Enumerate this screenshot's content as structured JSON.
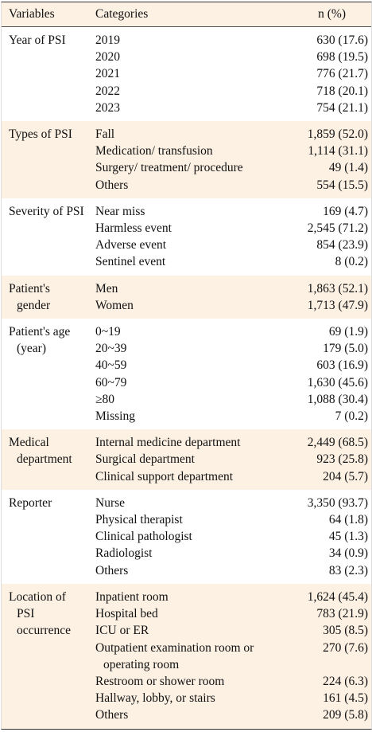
{
  "table": {
    "header": [
      "Variables",
      "Categories",
      "n (%)"
    ],
    "groups": [
      {
        "variable": "Year of PSI",
        "rows": [
          [
            "2019",
            "630 (17.6)"
          ],
          [
            "2020",
            "698 (19.5)"
          ],
          [
            "2021",
            "776 (21.7)"
          ],
          [
            "2022",
            "718 (20.1)"
          ],
          [
            "2023",
            "754 (21.1)"
          ]
        ]
      },
      {
        "variable": "Types of PSI",
        "rows": [
          [
            "Fall",
            "1,859 (52.0)"
          ],
          [
            "Medication/ transfusion",
            "1,114 (31.1)"
          ],
          [
            "Surgery/ treatment/ procedure",
            "49 (1.4)"
          ],
          [
            "Others",
            "554 (15.5)"
          ]
        ]
      },
      {
        "variable": "Severity of PSI",
        "rows": [
          [
            "Near miss",
            "169 (4.7)"
          ],
          [
            "Harmless event",
            "2,545 (71.2)"
          ],
          [
            "Adverse event",
            "854 (23.9)"
          ],
          [
            "Sentinel event",
            "8 (0.2)"
          ]
        ]
      },
      {
        "variable": "Patient's gender",
        "rows": [
          [
            "Men",
            "1,863 (52.1)"
          ],
          [
            "Women",
            "1,713 (47.9)"
          ]
        ]
      },
      {
        "variable": "Patient's age (year)",
        "rows": [
          [
            "0~19",
            "69 (1.9)"
          ],
          [
            "20~39",
            "179 (5.0)"
          ],
          [
            "40~59",
            "603 (16.9)"
          ],
          [
            "60~79",
            "1,630 (45.6)"
          ],
          [
            "≥80",
            "1,088 (30.4)"
          ],
          [
            "Missing",
            "7 (0.2)"
          ]
        ]
      },
      {
        "variable": "Medical department",
        "rows": [
          [
            "Internal medicine department",
            "2,449 (68.5)"
          ],
          [
            "Surgical department",
            "923 (25.8)"
          ],
          [
            "Clinical support department",
            "204 (5.7)"
          ]
        ]
      },
      {
        "variable": "Reporter",
        "rows": [
          [
            "Nurse",
            "3,350 (93.7)"
          ],
          [
            "Physical therapist",
            "64 (1.8)"
          ],
          [
            "Clinical pathologist",
            "45 (1.3)"
          ],
          [
            "Radiologist",
            "34 (0.9)"
          ],
          [
            "Others",
            "83 (2.3)"
          ]
        ]
      },
      {
        "variable": "Location of PSI occurrence",
        "rows": [
          [
            "Inpatient room",
            "1,624 (45.4)"
          ],
          [
            "Hospital bed",
            "783 (21.9)"
          ],
          [
            "ICU or ER",
            "305 (8.5)"
          ],
          [
            "Outpatient examination room or operating room",
            "270 (7.6)"
          ],
          [
            "Restroom or shower room",
            "224 (6.3)"
          ],
          [
            "Hallway, lobby, or stairs",
            "161 (4.5)"
          ],
          [
            "Others",
            "209 (5.8)"
          ]
        ]
      }
    ]
  }
}
